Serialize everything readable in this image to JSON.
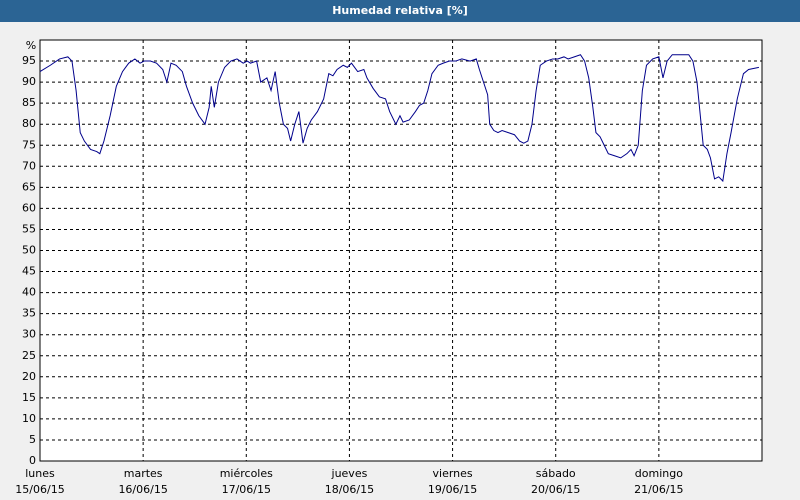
{
  "chart_data": {
    "type": "line",
    "title": "Humedad relativa [%]",
    "ylabel": "%",
    "x": [
      0,
      0.1,
      0.19,
      0.27,
      0.31,
      0.35,
      0.39,
      0.43,
      0.49,
      0.55,
      0.58,
      0.62,
      0.68,
      0.74,
      0.8,
      0.86,
      0.92,
      0.97,
      1.01,
      1.07,
      1.13,
      1.19,
      1.23,
      1.27,
      1.32,
      1.38,
      1.42,
      1.48,
      1.54,
      1.6,
      1.64,
      1.66,
      1.69,
      1.73,
      1.79,
      1.85,
      1.91,
      1.97,
      2.01,
      2.04,
      2.1,
      2.14,
      2.2,
      2.24,
      2.28,
      2.32,
      2.36,
      2.4,
      2.43,
      2.47,
      2.51,
      2.55,
      2.59,
      2.63,
      2.69,
      2.75,
      2.8,
      2.84,
      2.88,
      2.94,
      2.98,
      3.02,
      3.08,
      3.14,
      3.17,
      3.23,
      3.29,
      3.35,
      3.39,
      3.45,
      3.49,
      3.52,
      3.58,
      3.64,
      3.68,
      3.72,
      3.76,
      3.8,
      3.86,
      3.91,
      3.97,
      4.03,
      4.09,
      4.17,
      4.23,
      4.26,
      4.3,
      4.34,
      4.36,
      4.4,
      4.44,
      4.48,
      4.54,
      4.6,
      4.65,
      4.69,
      4.73,
      4.77,
      4.81,
      4.85,
      4.91,
      4.97,
      5.02,
      5.08,
      5.12,
      5.18,
      5.24,
      5.28,
      5.32,
      5.36,
      5.39,
      5.43,
      5.47,
      5.51,
      5.57,
      5.63,
      5.69,
      5.73,
      5.76,
      5.8,
      5.84,
      5.88,
      5.94,
      6.0,
      6.04,
      6.08,
      6.13,
      6.21,
      6.29,
      6.33,
      6.37,
      6.41,
      6.43,
      6.47,
      6.5,
      6.54,
      6.58,
      6.62,
      6.66,
      6.7,
      6.76,
      6.82,
      6.87,
      6.97
    ],
    "values": [
      92.5,
      94,
      95.5,
      96,
      95,
      88,
      78,
      76,
      74,
      73.5,
      73,
      76,
      82,
      89,
      92.5,
      94.5,
      95.5,
      94.5,
      95,
      95,
      94.5,
      93,
      90,
      94.5,
      94,
      92.5,
      89,
      85,
      82,
      80,
      84,
      89,
      84,
      90,
      93.5,
      95,
      95.5,
      94.5,
      95,
      94.5,
      95,
      90,
      91,
      88,
      92.5,
      85,
      80,
      79,
      76,
      80,
      83,
      75.5,
      79,
      81,
      83,
      86,
      92,
      91.5,
      93,
      94,
      93.5,
      94.5,
      92.5,
      93,
      91,
      88.5,
      86.5,
      86,
      83,
      80,
      82,
      80.5,
      81,
      83,
      84.5,
      85,
      88,
      92,
      94,
      94.5,
      95,
      95,
      95.5,
      95,
      95.5,
      93,
      90,
      87,
      80,
      78.5,
      78,
      78.5,
      78,
      77.5,
      76,
      75.5,
      76,
      80,
      88,
      94,
      95,
      95.5,
      95.5,
      96,
      95.5,
      96,
      96.5,
      95,
      91,
      84,
      78,
      77,
      75,
      73,
      72.5,
      72,
      73,
      74,
      72.5,
      75,
      88,
      94,
      95.5,
      96,
      91,
      95,
      96.5,
      96.5,
      96.5,
      95,
      90,
      80,
      75,
      74,
      72,
      67,
      67.5,
      66.5,
      73,
      78,
      86,
      92,
      93,
      93.5
    ],
    "color": "#00008b",
    "xlim": [
      0,
      7
    ],
    "xticks": [
      {
        "value": 0,
        "label": "lunes"
      },
      {
        "value": 1,
        "label": "martes"
      },
      {
        "value": 2,
        "label": "miércoles"
      },
      {
        "value": 3,
        "label": "jueves"
      },
      {
        "value": 4,
        "label": "viernes"
      },
      {
        "value": 5,
        "label": "sábado"
      },
      {
        "value": 6,
        "label": "domingo"
      }
    ],
    "xtick_dates": [
      "15/06/15",
      "16/06/15",
      "17/06/15",
      "18/06/15",
      "19/06/15",
      "20/06/15",
      "21/06/15"
    ],
    "ylim": [
      0,
      100
    ],
    "yticks": [
      0,
      5,
      10,
      15,
      20,
      25,
      30,
      35,
      40,
      45,
      50,
      55,
      60,
      65,
      70,
      75,
      80,
      85,
      90,
      95
    ],
    "grid": true
  }
}
